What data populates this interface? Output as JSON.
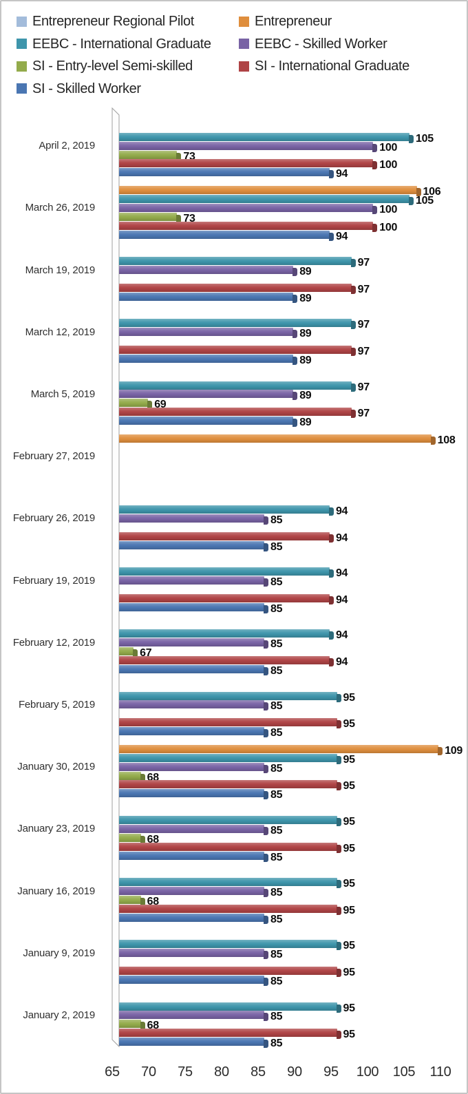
{
  "chart_data": {
    "type": "bar",
    "orientation": "horizontal",
    "style": "3d-clustered",
    "title": "",
    "xlabel": "",
    "ylabel": "",
    "grid": false,
    "data_labels": true,
    "legend_position": "top-left",
    "x_axis": {
      "min": 65,
      "max": 110,
      "tick_step": 5,
      "ticks": [
        65,
        70,
        75,
        80,
        85,
        90,
        95,
        100,
        105,
        110
      ]
    },
    "categories": [
      "April 2, 2019",
      "March 26, 2019",
      "March 19, 2019",
      "March 12, 2019",
      "March 5, 2019",
      "February 27, 2019",
      "February 26, 2019",
      "February 19, 2019",
      "February 12, 2019",
      "February 5, 2019",
      "January 30, 2019",
      "January 23, 2019",
      "January 16, 2019",
      "January 9, 2019",
      "January 2, 2019"
    ],
    "series": [
      {
        "name": "Entrepreneur Regional Pilot",
        "color": "#A3BCDB",
        "values": [
          null,
          null,
          null,
          null,
          null,
          null,
          null,
          null,
          null,
          null,
          null,
          null,
          null,
          null,
          null
        ]
      },
      {
        "name": "Entrepreneur",
        "color": "#DF8E3D",
        "values": [
          null,
          106,
          null,
          null,
          null,
          108,
          null,
          null,
          null,
          null,
          109,
          null,
          null,
          null,
          null
        ]
      },
      {
        "name": "EEBC - International Graduate",
        "color": "#3E95AB",
        "values": [
          105,
          105,
          97,
          97,
          97,
          null,
          94,
          94,
          94,
          95,
          95,
          95,
          95,
          95,
          95
        ]
      },
      {
        "name": "EEBC - Skilled Worker",
        "color": "#7963A5",
        "values": [
          100,
          100,
          89,
          89,
          89,
          null,
          85,
          85,
          85,
          85,
          85,
          85,
          85,
          85,
          85
        ]
      },
      {
        "name": "SI - Entry-level Semi-skilled",
        "color": "#93AB4B",
        "values": [
          73,
          73,
          null,
          null,
          69,
          null,
          null,
          null,
          67,
          null,
          68,
          68,
          68,
          null,
          68
        ]
      },
      {
        "name": "SI - International Graduate",
        "color": "#AF4345",
        "values": [
          100,
          100,
          97,
          97,
          97,
          null,
          94,
          94,
          94,
          95,
          95,
          95,
          95,
          95,
          95
        ]
      },
      {
        "name": "SI - Skilled Worker",
        "color": "#4A76B2",
        "values": [
          94,
          94,
          89,
          89,
          89,
          null,
          85,
          85,
          85,
          85,
          85,
          85,
          85,
          85,
          85
        ]
      }
    ]
  }
}
